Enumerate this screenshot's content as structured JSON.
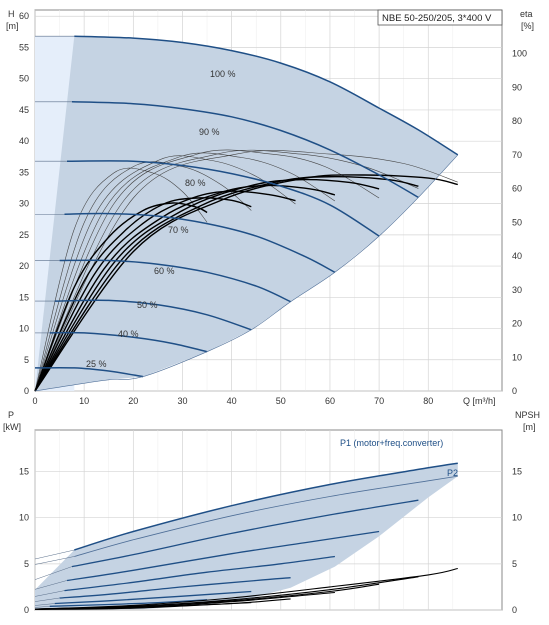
{
  "chart_data": [
    {
      "type": "line",
      "title": "NBE 50-250/205, 3*400 V",
      "xlabel": "Q [m³/h]",
      "ylabel": "H",
      "ylabel_unit": "[m]",
      "y2label": "eta",
      "y2label_unit": "[%]",
      "xlim": [
        0,
        95
      ],
      "ylim": [
        0,
        61
      ],
      "y2lim": [
        0,
        112.9
      ],
      "x_ticks": [
        "0",
        "10",
        "20",
        "30",
        "40",
        "50",
        "60",
        "70",
        "80"
      ],
      "y_ticks": [
        "0",
        "5",
        "10",
        "15",
        "20",
        "25",
        "30",
        "35",
        "40",
        "45",
        "50",
        "55",
        "60"
      ],
      "y2_ticks": [
        "0",
        "10",
        "20",
        "30",
        "40",
        "50",
        "60",
        "70",
        "80",
        "90",
        "100"
      ],
      "grid": true,
      "colors": {
        "area": "#c5d3e3",
        "area_light": "#e5eefa",
        "curve": "#1f4f86",
        "eta": "#000000",
        "thin": "#444444"
      },
      "series": [
        {
          "name": "100 %",
          "q_end": 86,
          "x": [
            8,
            20,
            30,
            40,
            50,
            60,
            70,
            78,
            86
          ],
          "values": [
            56.8,
            56.5,
            55.8,
            54.5,
            52.5,
            49.5,
            45.3,
            41.8,
            37.8
          ]
        },
        {
          "name": "90 %",
          "q_end": 78,
          "x": [
            7.5,
            20,
            30,
            40,
            50,
            60,
            70,
            78
          ],
          "values": [
            46.3,
            46.0,
            45.2,
            43.9,
            41.7,
            38.6,
            34.6,
            31.0
          ]
        },
        {
          "name": "80 %",
          "q_end": 70,
          "x": [
            6.5,
            20,
            30,
            40,
            50,
            60,
            70
          ],
          "values": [
            36.8,
            36.8,
            36.1,
            34.8,
            32.8,
            29.8,
            24.8
          ]
        },
        {
          "name": "70 %",
          "q_end": 61,
          "x": [
            6,
            15,
            25,
            35,
            45,
            55,
            61
          ],
          "values": [
            28.3,
            28.4,
            28.0,
            26.8,
            24.8,
            21.5,
            19.0
          ]
        },
        {
          "name": "60 %",
          "q_end": 52,
          "x": [
            5,
            15,
            25,
            35,
            45,
            52
          ],
          "values": [
            20.9,
            20.9,
            20.3,
            19.0,
            16.8,
            14.3
          ]
        },
        {
          "name": "50 %",
          "q_end": 44,
          "x": [
            4,
            15,
            25,
            35,
            44
          ],
          "values": [
            14.4,
            14.5,
            13.8,
            12.2,
            9.8
          ]
        },
        {
          "name": "40 %",
          "q_end": 35,
          "x": [
            3,
            10,
            20,
            28,
            35
          ],
          "values": [
            9.3,
            9.3,
            8.6,
            7.6,
            6.3
          ]
        },
        {
          "name": "25 %",
          "q_end": 22,
          "x": [
            0,
            8,
            15,
            22
          ],
          "values": [
            3.7,
            3.7,
            3.2,
            2.3
          ]
        }
      ],
      "eta_curves": [
        {
          "x": [
            0,
            8,
            15,
            22,
            28,
            33,
            35
          ],
          "values": [
            0,
            30.8,
            45.6,
            53.5,
            55.7,
            54.4,
            52.9
          ]
        },
        {
          "x": [
            0,
            10,
            18,
            26,
            33,
            40,
            44
          ],
          "values": [
            0,
            32.6,
            47.1,
            55.3,
            57.2,
            56.5,
            54.6
          ]
        },
        {
          "x": [
            0,
            12,
            22,
            32,
            40,
            48,
            53
          ],
          "values": [
            0,
            34.4,
            49.7,
            57.2,
            59.2,
            58.1,
            56.4
          ]
        },
        {
          "x": [
            0,
            14,
            26,
            38,
            47,
            56,
            61
          ],
          "values": [
            0,
            36.1,
            51.6,
            58.9,
            60.9,
            59.9,
            58.1
          ]
        },
        {
          "x": [
            0,
            16,
            30,
            44,
            54,
            64,
            70
          ],
          "values": [
            0,
            37.9,
            53.5,
            60.9,
            62.6,
            61.8,
            59.9
          ]
        },
        {
          "x": [
            0,
            18,
            34,
            50,
            61,
            72,
            78
          ],
          "values": [
            0,
            39.5,
            55.1,
            62.2,
            63.5,
            62.6,
            60.7
          ]
        },
        {
          "x": [
            0,
            20,
            38,
            55,
            67,
            80,
            86
          ],
          "values": [
            0,
            41.3,
            56.6,
            63.1,
            64.0,
            63.1,
            61.2
          ]
        }
      ],
      "thin_curves": [
        {
          "x": [
            0,
            8,
            16,
            24,
            30,
            35
          ],
          "values": [
            0,
            48.0,
            64.6,
            64.6,
            59.1,
            50.0
          ]
        },
        {
          "x": [
            0,
            10,
            20,
            30,
            38,
            44
          ],
          "values": [
            0,
            49.9,
            66.5,
            66.5,
            61.0,
            53.5
          ]
        },
        {
          "x": [
            0,
            12,
            25,
            36,
            45,
            53
          ],
          "values": [
            0,
            51.7,
            68.3,
            68.3,
            63.6,
            55.4
          ]
        },
        {
          "x": [
            0,
            14,
            29,
            42,
            52,
            61
          ],
          "values": [
            0,
            53.5,
            69.2,
            69.2,
            64.6,
            56.3
          ]
        },
        {
          "x": [
            0,
            16,
            33,
            48,
            59,
            70
          ],
          "values": [
            0,
            55.4,
            70.2,
            70.2,
            66.5,
            57.2
          ]
        },
        {
          "x": [
            0,
            18,
            37,
            54,
            67,
            78
          ],
          "values": [
            0,
            56.3,
            70.2,
            70.2,
            66.5,
            60.0
          ]
        },
        {
          "x": [
            0,
            20,
            41,
            60,
            75,
            86
          ],
          "values": [
            0,
            57.2,
            70.2,
            70.2,
            67.4,
            61.9
          ]
        }
      ],
      "area_outline": {
        "left": [
          [
            8,
            56.8
          ],
          [
            0,
            0
          ]
        ],
        "bottom": [
          [
            0,
            0
          ],
          [
            8,
            1.0
          ],
          [
            15,
            1.8
          ],
          [
            22,
            2.3
          ],
          [
            35,
            6.3
          ],
          [
            44,
            9.8
          ],
          [
            52,
            14.3
          ],
          [
            61,
            19.0
          ],
          [
            70,
            24.8
          ],
          [
            78,
            31.0
          ],
          [
            86,
            37.8
          ]
        ]
      },
      "annotations": [
        "100 %",
        "90 %",
        "80 %",
        "70 %",
        "60 %",
        "50 %",
        "40 %",
        "25 %"
      ]
    },
    {
      "type": "line",
      "ylabel": "P",
      "ylabel_unit": "[kW]",
      "y2label": "NPSH",
      "y2label_unit": "[m]",
      "xlim": [
        0,
        95
      ],
      "ylim": [
        0,
        19.5
      ],
      "y2lim": [
        0,
        19.5
      ],
      "y_ticks": [
        "0",
        "5",
        "10",
        "15"
      ],
      "y2_ticks": [
        "0",
        "5",
        "10",
        "15"
      ],
      "grid": true,
      "series": [
        {
          "name": "P1 (motor+freq.converter)",
          "x": [
            8,
            20,
            40,
            60,
            80,
            86
          ],
          "values": [
            6.5,
            8.5,
            11.3,
            13.6,
            15.4,
            15.9
          ]
        },
        {
          "name": "P2",
          "x": [
            8,
            20,
            40,
            60,
            80,
            86
          ],
          "values": [
            5.8,
            7.6,
            10.2,
            12.3,
            14.0,
            14.5
          ]
        }
      ],
      "power_curves": [
        {
          "x": [
            7.5,
            20,
            40,
            60,
            78
          ],
          "values": [
            4.7,
            6.0,
            8.3,
            10.3,
            11.9
          ]
        },
        {
          "x": [
            6.5,
            20,
            40,
            55,
            70
          ],
          "values": [
            3.2,
            4.3,
            6.1,
            7.3,
            8.5
          ]
        },
        {
          "x": [
            6,
            20,
            35,
            50,
            61
          ],
          "values": [
            2.1,
            3.0,
            4.1,
            5.0,
            5.8
          ]
        },
        {
          "x": [
            5,
            15,
            30,
            45,
            52
          ],
          "values": [
            1.3,
            1.7,
            2.5,
            3.2,
            3.5
          ]
        },
        {
          "x": [
            4,
            15,
            30,
            44
          ],
          "values": [
            0.7,
            1.0,
            1.5,
            2.0
          ]
        },
        {
          "x": [
            3,
            15,
            25,
            35
          ],
          "values": [
            0.4,
            0.6,
            0.8,
            1.1
          ]
        },
        {
          "x": [
            0,
            10,
            22
          ],
          "values": [
            0.1,
            0.2,
            0.3
          ]
        }
      ],
      "npsh_curves": [
        {
          "x": [
            0,
            20,
            40,
            60,
            80,
            86
          ],
          "values": [
            0.1,
            0.5,
            1.3,
            2.5,
            3.8,
            4.5
          ]
        },
        {
          "x": [
            0,
            20,
            40,
            60,
            78
          ],
          "values": [
            0.1,
            0.4,
            1.1,
            2.2,
            3.6
          ]
        },
        {
          "x": [
            0,
            20,
            40,
            60,
            70
          ],
          "values": [
            0.1,
            0.4,
            1.0,
            2.0,
            2.8
          ]
        },
        {
          "x": [
            0,
            20,
            40,
            61
          ],
          "values": [
            0.1,
            0.3,
            0.9,
            1.9
          ]
        },
        {
          "x": [
            0,
            20,
            40,
            52
          ],
          "values": [
            0.1,
            0.3,
            0.7,
            1.2
          ]
        },
        {
          "x": [
            0,
            20,
            44
          ],
          "values": [
            0.05,
            0.2,
            0.8
          ]
        }
      ],
      "lower_area": [
        [
          8,
          6.5
        ],
        [
          20,
          8.5
        ],
        [
          40,
          11.3
        ],
        [
          60,
          13.6
        ],
        [
          80,
          15.4
        ],
        [
          86,
          15.9
        ],
        [
          86,
          14.5
        ],
        [
          80,
          12.2
        ],
        [
          70,
          8.0
        ],
        [
          61,
          4.7
        ],
        [
          52,
          2.4
        ],
        [
          44,
          1.3
        ],
        [
          35,
          0.6
        ],
        [
          22,
          0.1
        ],
        [
          0,
          0.0
        ],
        [
          0,
          2.2
        ]
      ]
    }
  ]
}
